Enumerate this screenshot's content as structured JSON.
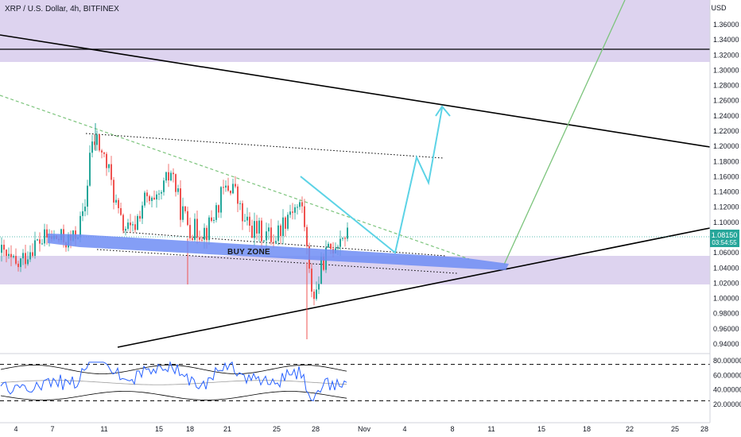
{
  "chart_data": {
    "type": "candlestick",
    "title": "XRP / U.S. Dollar, 4h, BITFINEX",
    "currency": "USD",
    "last_price": "1.08150",
    "countdown": "03:54:55",
    "y_ticks": [
      "1.36000",
      "1.34000",
      "1.32000",
      "1.30000",
      "1.28000",
      "1.26000",
      "1.24000",
      "1.22000",
      "1.20000",
      "1.18000",
      "1.16000",
      "1.14000",
      "1.12000",
      "1.10000",
      "1.06000",
      "1.04000",
      "1.02000",
      "1.00000",
      "0.98000",
      "0.96000",
      "0.94000"
    ],
    "x_ticks": [
      "4",
      "7",
      "11",
      "15",
      "18",
      "21",
      "25",
      "28",
      "Nov",
      "4",
      "8",
      "11",
      "15",
      "18",
      "22",
      "25",
      "28"
    ],
    "buy_zone_label": "BUY ZONE",
    "osc_ticks": [
      "80.00000",
      "60.00000",
      "40.00000",
      "20.00000"
    ],
    "colors": {
      "up": "#26a69a",
      "down": "#ef5350",
      "zone": "#d1c4e9",
      "buy_zone": "#6f8df5",
      "projection": "#5cd3e6",
      "green_line": "#7cc47c",
      "price_tag": "#26a69a",
      "osc_line": "#2962ff"
    }
  }
}
